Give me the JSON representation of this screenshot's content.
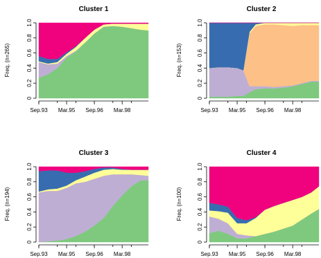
{
  "figure": {
    "background": "#ffffff",
    "state_colors": [
      "#7fc97f",
      "#beaed4",
      "#fdc086",
      "#ffff99",
      "#386cb0",
      "#f0027f"
    ]
  },
  "chart_data": [
    {
      "type": "area",
      "stacked": true,
      "title": "Cluster 1",
      "ylabel": "Freq. (n=265)",
      "ylim": [
        0,
        1
      ],
      "yticks": [
        "0",
        "0.2",
        "0.4",
        "0.6",
        "0.8",
        "1.0"
      ],
      "xticks": [
        "Sep.93",
        "Mar.95",
        "Sep.96",
        "Mar.98"
      ],
      "x": [
        0,
        6,
        12,
        18,
        24,
        30,
        36,
        42,
        48,
        54,
        60,
        66,
        71
      ],
      "series": [
        {
          "color": "#7fc97f",
          "values": [
            0.27,
            0.32,
            0.4,
            0.54,
            0.62,
            0.74,
            0.86,
            0.95,
            0.96,
            0.95,
            0.93,
            0.91,
            0.9
          ]
        },
        {
          "color": "#beaed4",
          "values": [
            0.21,
            0.13,
            0.06,
            0.02,
            0.01,
            0.0,
            0.0,
            0.0,
            0.0,
            0.0,
            0.0,
            0.0,
            0.0
          ]
        },
        {
          "color": "#fdc086",
          "values": [
            0.0,
            0.0,
            0.0,
            0.0,
            0.0,
            0.0,
            0.0,
            0.0,
            0.0,
            0.0,
            0.0,
            0.0,
            0.0
          ]
        },
        {
          "color": "#ffff99",
          "values": [
            0.01,
            0.01,
            0.02,
            0.03,
            0.05,
            0.06,
            0.05,
            0.03,
            0.03,
            0.04,
            0.06,
            0.08,
            0.09
          ]
        },
        {
          "color": "#386cb0",
          "values": [
            0.07,
            0.06,
            0.04,
            0.02,
            0.01,
            0.0,
            0.0,
            0.0,
            0.0,
            0.0,
            0.0,
            0.0,
            0.0
          ]
        },
        {
          "color": "#f0027f",
          "values": [
            0.44,
            0.48,
            0.48,
            0.39,
            0.31,
            0.2,
            0.09,
            0.02,
            0.01,
            0.01,
            0.01,
            0.01,
            0.01
          ]
        }
      ]
    },
    {
      "type": "area",
      "stacked": true,
      "title": "Cluster 2",
      "ylabel": "Freq. (n=153)",
      "ylim": [
        0,
        1
      ],
      "yticks": [
        "0",
        "0.2",
        "0.4",
        "0.6",
        "0.8",
        "1.0"
      ],
      "xticks": [
        "Sep.93",
        "Mar.95",
        "Sep.96",
        "Mar.98"
      ],
      "x": [
        0,
        6,
        12,
        18,
        22,
        26,
        30,
        36,
        42,
        48,
        54,
        60,
        66,
        71
      ],
      "series": [
        {
          "color": "#7fc97f",
          "values": [
            0.02,
            0.02,
            0.02,
            0.03,
            0.03,
            0.08,
            0.12,
            0.13,
            0.13,
            0.14,
            0.16,
            0.19,
            0.22,
            0.22
          ]
        },
        {
          "color": "#beaed4",
          "values": [
            0.38,
            0.39,
            0.39,
            0.37,
            0.34,
            0.08,
            0.04,
            0.03,
            0.02,
            0.02,
            0.01,
            0.01,
            0.01,
            0.01
          ]
        },
        {
          "color": "#fdc086",
          "values": [
            0.0,
            0.0,
            0.0,
            0.0,
            0.0,
            0.7,
            0.8,
            0.82,
            0.83,
            0.81,
            0.79,
            0.77,
            0.74,
            0.74
          ]
        },
        {
          "color": "#ffff99",
          "values": [
            0.0,
            0.0,
            0.0,
            0.0,
            0.0,
            0.02,
            0.02,
            0.02,
            0.02,
            0.03,
            0.04,
            0.03,
            0.03,
            0.03
          ]
        },
        {
          "color": "#386cb0",
          "values": [
            0.6,
            0.59,
            0.59,
            0.6,
            0.63,
            0.12,
            0.02,
            0.0,
            0.0,
            0.0,
            0.0,
            0.0,
            0.0,
            0.0
          ]
        },
        {
          "color": "#f0027f",
          "values": [
            0.0,
            0.0,
            0.0,
            0.0,
            0.0,
            0.0,
            0.0,
            0.0,
            0.0,
            0.0,
            0.0,
            0.0,
            0.0,
            0.0
          ]
        }
      ]
    },
    {
      "type": "area",
      "stacked": true,
      "title": "Cluster 3",
      "ylabel": "Freq. (n=194)",
      "ylim": [
        0,
        1
      ],
      "yticks": [
        "0",
        "0.2",
        "0.4",
        "0.6",
        "0.8",
        "1.0"
      ],
      "xticks": [
        "Sep.93",
        "Mar.95",
        "Sep.96",
        "Mar.98"
      ],
      "x": [
        0,
        6,
        12,
        18,
        24,
        30,
        36,
        42,
        48,
        54,
        60,
        66,
        71
      ],
      "series": [
        {
          "color": "#7fc97f",
          "values": [
            0.0,
            0.01,
            0.02,
            0.04,
            0.08,
            0.14,
            0.22,
            0.32,
            0.48,
            0.62,
            0.74,
            0.82,
            0.82
          ]
        },
        {
          "color": "#beaed4",
          "values": [
            0.66,
            0.67,
            0.66,
            0.68,
            0.7,
            0.66,
            0.62,
            0.56,
            0.42,
            0.28,
            0.16,
            0.07,
            0.06
          ]
        },
        {
          "color": "#fdc086",
          "values": [
            0.0,
            0.0,
            0.0,
            0.0,
            0.0,
            0.0,
            0.0,
            0.0,
            0.0,
            0.0,
            0.0,
            0.0,
            0.0
          ]
        },
        {
          "color": "#ffff99",
          "values": [
            0.01,
            0.02,
            0.03,
            0.03,
            0.04,
            0.07,
            0.08,
            0.08,
            0.07,
            0.06,
            0.06,
            0.07,
            0.08
          ]
        },
        {
          "color": "#386cb0",
          "values": [
            0.27,
            0.25,
            0.24,
            0.17,
            0.1,
            0.07,
            0.05,
            0.03,
            0.02,
            0.01,
            0.0,
            0.0,
            0.0
          ]
        },
        {
          "color": "#f0027f",
          "values": [
            0.06,
            0.05,
            0.05,
            0.08,
            0.08,
            0.06,
            0.03,
            0.01,
            0.01,
            0.03,
            0.04,
            0.04,
            0.04
          ]
        }
      ]
    },
    {
      "type": "area",
      "stacked": true,
      "title": "Cluster 4",
      "ylabel": "Freq. (n=100)",
      "ylim": [
        0,
        1
      ],
      "yticks": [
        "0",
        "0.2",
        "0.4",
        "0.6",
        "0.8",
        "1.0"
      ],
      "xticks": [
        "Sep.93",
        "Mar.95",
        "Sep.96",
        "Mar.98"
      ],
      "x": [
        0,
        6,
        12,
        18,
        24,
        30,
        36,
        42,
        48,
        54,
        60,
        66,
        71
      ],
      "series": [
        {
          "color": "#7fc97f",
          "values": [
            0.12,
            0.15,
            0.11,
            0.05,
            0.05,
            0.08,
            0.11,
            0.14,
            0.18,
            0.22,
            0.3,
            0.38,
            0.44
          ]
        },
        {
          "color": "#beaed4",
          "values": [
            0.22,
            0.16,
            0.14,
            0.06,
            0.04,
            0.0,
            0.0,
            0.0,
            0.0,
            0.0,
            0.0,
            0.0,
            0.0
          ]
        },
        {
          "color": "#fdc086",
          "values": [
            0.0,
            0.0,
            0.0,
            0.0,
            0.0,
            0.0,
            0.0,
            0.0,
            0.0,
            0.0,
            0.0,
            0.0,
            0.0
          ]
        },
        {
          "color": "#ffff99",
          "values": [
            0.08,
            0.1,
            0.14,
            0.14,
            0.16,
            0.24,
            0.32,
            0.34,
            0.34,
            0.34,
            0.3,
            0.28,
            0.3
          ]
        },
        {
          "color": "#386cb0",
          "values": [
            0.1,
            0.09,
            0.08,
            0.07,
            0.04,
            0.01,
            0.0,
            0.0,
            0.0,
            0.0,
            0.0,
            0.0,
            0.0
          ]
        },
        {
          "color": "#f0027f",
          "values": [
            0.48,
            0.5,
            0.53,
            0.68,
            0.71,
            0.67,
            0.57,
            0.52,
            0.48,
            0.44,
            0.4,
            0.34,
            0.26
          ]
        }
      ]
    }
  ]
}
